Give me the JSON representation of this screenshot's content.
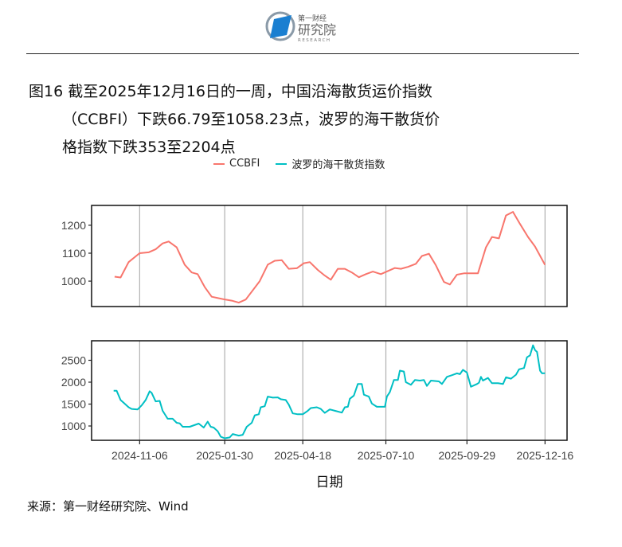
{
  "header": {
    "logo_text": "第一财经研究院",
    "logo_sub": "RESEARCH"
  },
  "title": {
    "line1": "图16  截至2025年12月16日的一周，中国沿海散货运价指数",
    "line2": "（CCBFI）下跌66.79至1058.23点，波罗的海干散货价",
    "line3": "格指数下跌353至2204点"
  },
  "source": "来源：第一财经研究院、Wind",
  "chart_data": {
    "type": "line",
    "xlabel": "日期",
    "x_ticks": [
      "2024-11-06",
      "2025-01-30",
      "2025-04-18",
      "2025-07-10",
      "2025-09-29",
      "2025-12-16"
    ],
    "xlim": [
      "2024-09-19",
      "2026-01-07"
    ],
    "grid": "vertical major lines",
    "legend_position": "top",
    "legend": [
      "CCBFI",
      "波罗的海干散货指数"
    ],
    "colors": {
      "CCBFI": "#F8766D",
      "BDI": "#00BFC4"
    },
    "panels": [
      {
        "series_name": "CCBFI",
        "ylim": [
          909,
          1271
        ],
        "y_ticks": [
          1000,
          1100,
          1200
        ],
        "points": [
          [
            "2024-10-12",
            1016
          ],
          [
            "2024-10-18",
            1013
          ],
          [
            "2024-10-26",
            1068
          ],
          [
            "2024-11-06",
            1100
          ],
          [
            "2024-11-15",
            1103
          ],
          [
            "2024-11-22",
            1114
          ],
          [
            "2024-11-29",
            1135
          ],
          [
            "2024-12-05",
            1142
          ],
          [
            "2024-12-13",
            1121
          ],
          [
            "2024-12-21",
            1059
          ],
          [
            "2024-12-28",
            1031
          ],
          [
            "2025-01-03",
            1025
          ],
          [
            "2025-01-10",
            979
          ],
          [
            "2025-01-17",
            944
          ],
          [
            "2025-01-29",
            935
          ],
          [
            "2025-02-06",
            930
          ],
          [
            "2025-02-13",
            923
          ],
          [
            "2025-02-20",
            934
          ],
          [
            "2025-03-06",
            1000
          ],
          [
            "2025-03-14",
            1059
          ],
          [
            "2025-03-21",
            1073
          ],
          [
            "2025-03-28",
            1075
          ],
          [
            "2025-04-04",
            1044
          ],
          [
            "2025-04-12",
            1046
          ],
          [
            "2025-04-19",
            1064
          ],
          [
            "2025-04-25",
            1068
          ],
          [
            "2025-05-03",
            1040
          ],
          [
            "2025-05-10",
            1020
          ],
          [
            "2025-05-16",
            1005
          ],
          [
            "2025-05-23",
            1044
          ],
          [
            "2025-05-30",
            1044
          ],
          [
            "2025-06-06",
            1031
          ],
          [
            "2025-06-13",
            1014
          ],
          [
            "2025-06-20",
            1025
          ],
          [
            "2025-06-27",
            1034
          ],
          [
            "2025-07-05",
            1025
          ],
          [
            "2025-07-12",
            1036
          ],
          [
            "2025-07-19",
            1047
          ],
          [
            "2025-07-25",
            1044
          ],
          [
            "2025-08-01",
            1051
          ],
          [
            "2025-08-09",
            1062
          ],
          [
            "2025-08-15",
            1090
          ],
          [
            "2025-08-22",
            1098
          ],
          [
            "2025-08-29",
            1056
          ],
          [
            "2025-09-06",
            997
          ],
          [
            "2025-09-12",
            988
          ],
          [
            "2025-09-19",
            1023
          ],
          [
            "2025-09-26",
            1028
          ],
          [
            "2025-10-10",
            1028
          ],
          [
            "2025-10-18",
            1121
          ],
          [
            "2025-10-24",
            1158
          ],
          [
            "2025-10-31",
            1153
          ],
          [
            "2025-11-07",
            1235
          ],
          [
            "2025-11-14",
            1248
          ],
          [
            "2025-11-21",
            1205
          ],
          [
            "2025-11-29",
            1158
          ],
          [
            "2025-12-06",
            1124
          ],
          [
            "2025-12-16",
            1058.23
          ]
        ]
      },
      {
        "series_name": "波罗的海干散货指数",
        "ylim": [
          673,
          2945
        ],
        "y_ticks": [
          1000,
          1500,
          2000,
          2500
        ],
        "points": [
          [
            "2024-10-11",
            1805
          ],
          [
            "2024-10-14",
            1805
          ],
          [
            "2024-10-18",
            1592
          ],
          [
            "2024-10-21",
            1530
          ],
          [
            "2024-10-26",
            1427
          ],
          [
            "2024-10-29",
            1390
          ],
          [
            "2024-11-04",
            1378
          ],
          [
            "2024-11-08",
            1470
          ],
          [
            "2024-11-12",
            1592
          ],
          [
            "2024-11-16",
            1793
          ],
          [
            "2024-11-18",
            1756
          ],
          [
            "2024-11-22",
            1561
          ],
          [
            "2024-11-26",
            1573
          ],
          [
            "2024-11-29",
            1348
          ],
          [
            "2024-12-04",
            1165
          ],
          [
            "2024-12-09",
            1165
          ],
          [
            "2024-12-13",
            1073
          ],
          [
            "2024-12-16",
            1061
          ],
          [
            "2024-12-19",
            982
          ],
          [
            "2024-12-26",
            982
          ],
          [
            "2025-01-04",
            1055
          ],
          [
            "2025-01-09",
            963
          ],
          [
            "2025-01-13",
            1098
          ],
          [
            "2025-01-16",
            982
          ],
          [
            "2025-01-19",
            963
          ],
          [
            "2025-01-23",
            878
          ],
          [
            "2025-01-26",
            756
          ],
          [
            "2025-01-30",
            719
          ],
          [
            "2025-02-04",
            738
          ],
          [
            "2025-02-07",
            817
          ],
          [
            "2025-02-13",
            780
          ],
          [
            "2025-02-17",
            799
          ],
          [
            "2025-02-21",
            982
          ],
          [
            "2025-02-26",
            1073
          ],
          [
            "2025-03-01",
            1244
          ],
          [
            "2025-03-05",
            1268
          ],
          [
            "2025-03-07",
            1427
          ],
          [
            "2025-03-11",
            1451
          ],
          [
            "2025-03-14",
            1671
          ],
          [
            "2025-03-19",
            1647
          ],
          [
            "2025-03-24",
            1653
          ],
          [
            "2025-03-27",
            1610
          ],
          [
            "2025-04-01",
            1592
          ],
          [
            "2025-04-04",
            1488
          ],
          [
            "2025-04-08",
            1287
          ],
          [
            "2025-04-13",
            1268
          ],
          [
            "2025-04-18",
            1268
          ],
          [
            "2025-04-23",
            1348
          ],
          [
            "2025-04-26",
            1409
          ],
          [
            "2025-05-02",
            1427
          ],
          [
            "2025-05-06",
            1390
          ],
          [
            "2025-05-10",
            1299
          ],
          [
            "2025-05-15",
            1378
          ],
          [
            "2025-05-20",
            1348
          ],
          [
            "2025-05-27",
            1305
          ],
          [
            "2025-05-30",
            1427
          ],
          [
            "2025-06-02",
            1439
          ],
          [
            "2025-06-04",
            1622
          ],
          [
            "2025-06-08",
            1695
          ],
          [
            "2025-06-12",
            1958
          ],
          [
            "2025-06-16",
            1958
          ],
          [
            "2025-06-18",
            1714
          ],
          [
            "2025-06-23",
            1671
          ],
          [
            "2025-06-26",
            1512
          ],
          [
            "2025-07-01",
            1439
          ],
          [
            "2025-07-09",
            1439
          ],
          [
            "2025-07-11",
            1671
          ],
          [
            "2025-07-14",
            1775
          ],
          [
            "2025-07-18",
            2049
          ],
          [
            "2025-07-22",
            2049
          ],
          [
            "2025-07-24",
            2263
          ],
          [
            "2025-07-28",
            2244
          ],
          [
            "2025-07-30",
            2000
          ],
          [
            "2025-08-04",
            1940
          ],
          [
            "2025-08-08",
            2049
          ],
          [
            "2025-08-13",
            2037
          ],
          [
            "2025-08-17",
            2049
          ],
          [
            "2025-08-20",
            1915
          ],
          [
            "2025-08-24",
            2037
          ],
          [
            "2025-09-01",
            2018
          ],
          [
            "2025-09-04",
            1958
          ],
          [
            "2025-09-09",
            2122
          ],
          [
            "2025-09-14",
            2159
          ],
          [
            "2025-09-19",
            2202
          ],
          [
            "2025-09-22",
            2183
          ],
          [
            "2025-09-25",
            2281
          ],
          [
            "2025-09-29",
            2220
          ],
          [
            "2025-10-03",
            1897
          ],
          [
            "2025-10-09",
            1958
          ],
          [
            "2025-10-11",
            1988
          ],
          [
            "2025-10-13",
            2122
          ],
          [
            "2025-10-15",
            2037
          ],
          [
            "2025-10-20",
            2098
          ],
          [
            "2025-10-24",
            1976
          ],
          [
            "2025-10-30",
            1976
          ],
          [
            "2025-11-04",
            1958
          ],
          [
            "2025-11-07",
            2110
          ],
          [
            "2025-11-12",
            2080
          ],
          [
            "2025-11-17",
            2171
          ],
          [
            "2025-11-20",
            2293
          ],
          [
            "2025-11-25",
            2324
          ],
          [
            "2025-11-28",
            2568
          ],
          [
            "2025-12-01",
            2611
          ],
          [
            "2025-12-04",
            2842
          ],
          [
            "2025-12-06",
            2732
          ],
          [
            "2025-12-08",
            2690
          ],
          [
            "2025-12-11",
            2263
          ],
          [
            "2025-12-13",
            2202
          ],
          [
            "2025-12-16",
            2204
          ]
        ]
      }
    ]
  }
}
